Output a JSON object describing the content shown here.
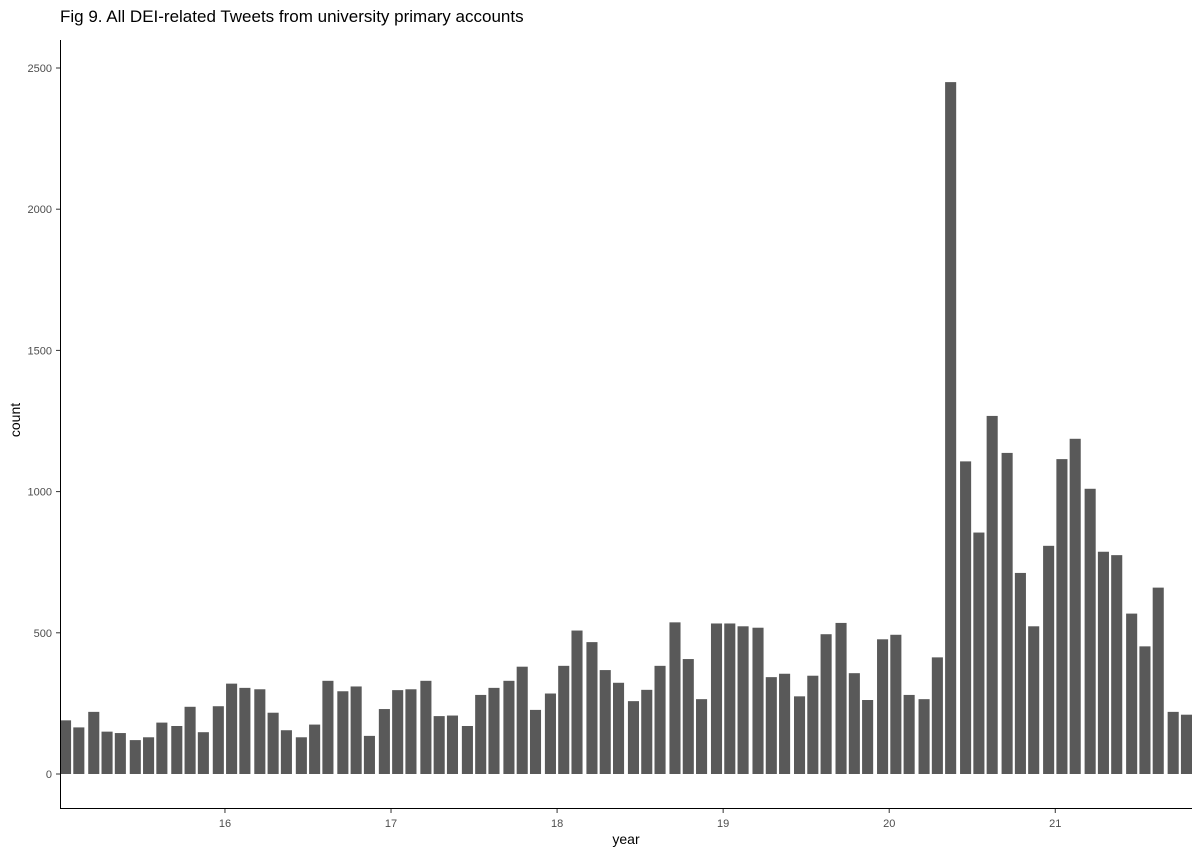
{
  "chart_data": {
    "type": "bar",
    "title": "Fig 9. All DEI-related Tweets from university primary accounts",
    "xlabel": "year",
    "ylabel": "count",
    "ylim": [
      0,
      2500
    ],
    "yticks": [
      0,
      500,
      1000,
      1500,
      2000,
      2500
    ],
    "xticks": [
      {
        "value": 16,
        "label": "16"
      },
      {
        "value": 17,
        "label": "17"
      },
      {
        "value": 18,
        "label": "18"
      },
      {
        "value": 19,
        "label": "19"
      },
      {
        "value": 20,
        "label": "20"
      },
      {
        "value": 21,
        "label": "21"
      }
    ],
    "xlim": [
      15.04,
      21.79
    ],
    "bar_width_years": 0.0667,
    "grid": false,
    "legend": "none",
    "bar_color": "#595959",
    "x": [
      15.04,
      15.12,
      15.21,
      15.29,
      15.37,
      15.46,
      15.54,
      15.62,
      15.71,
      15.79,
      15.87,
      15.96,
      16.04,
      16.12,
      16.21,
      16.29,
      16.37,
      16.46,
      16.54,
      16.62,
      16.71,
      16.79,
      16.87,
      16.96,
      17.04,
      17.12,
      17.21,
      17.29,
      17.37,
      17.46,
      17.54,
      17.62,
      17.71,
      17.79,
      17.87,
      17.96,
      18.04,
      18.12,
      18.21,
      18.29,
      18.37,
      18.46,
      18.54,
      18.62,
      18.71,
      18.79,
      18.87,
      18.96,
      19.04,
      19.12,
      19.21,
      19.29,
      19.37,
      19.46,
      19.54,
      19.62,
      19.71,
      19.79,
      19.87,
      19.96,
      20.04,
      20.12,
      20.21,
      20.29,
      20.37,
      20.46,
      20.54,
      20.62,
      20.71,
      20.79,
      20.87,
      20.96,
      21.04,
      21.12,
      21.21,
      21.29,
      21.37,
      21.46,
      21.54,
      21.62,
      21.71,
      21.79
    ],
    "values": [
      190,
      165,
      220,
      150,
      145,
      120,
      130,
      182,
      170,
      238,
      148,
      240,
      320,
      305,
      300,
      217,
      155,
      130,
      175,
      330,
      293,
      310,
      135,
      230,
      297,
      300,
      330,
      205,
      207,
      170,
      280,
      305,
      330,
      380,
      227,
      285,
      383,
      508,
      467,
      368,
      323,
      258,
      298,
      383,
      537,
      407,
      265,
      533,
      533,
      523,
      518,
      343,
      355,
      275,
      348,
      495,
      535,
      357,
      262,
      477,
      493,
      280,
      265,
      413,
      2450,
      1107,
      855,
      1268,
      1137,
      712,
      523,
      808,
      1115,
      1187,
      1010,
      787,
      775,
      568,
      452,
      660,
      220,
      210
    ]
  }
}
